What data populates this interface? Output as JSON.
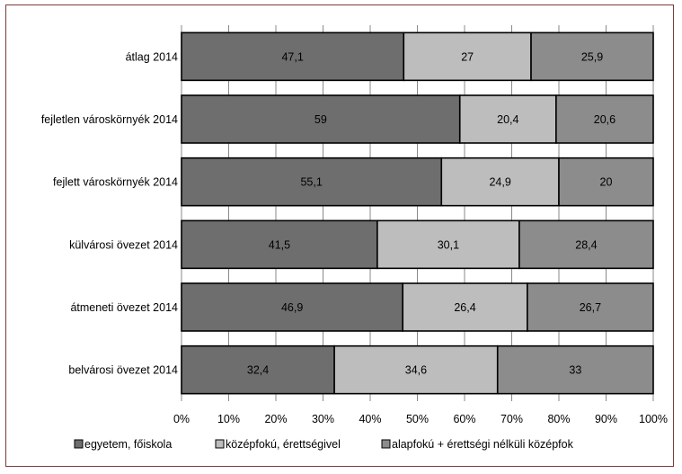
{
  "chart_data": {
    "type": "bar",
    "orientation": "horizontal",
    "stacked": true,
    "percent": true,
    "title": "",
    "xlabel": "",
    "ylabel": "",
    "xlim": [
      0,
      100
    ],
    "xticks": [
      "0%",
      "10%",
      "20%",
      "30%",
      "40%",
      "50%",
      "60%",
      "70%",
      "80%",
      "90%",
      "100%"
    ],
    "grid": true,
    "legend_position": "bottom",
    "categories": [
      "átlag 2014",
      "fejletlen városkörnyék 2014",
      "fejlett városkörnyék 2014",
      "külvárosi övezet 2014",
      "átmeneti övezet 2014",
      "belvárosi övezet 2014"
    ],
    "series": [
      {
        "name": "egyetem, főiskola",
        "color": "#6e6e6e",
        "values": [
          47.1,
          59,
          55.1,
          41.5,
          46.9,
          32.4
        ],
        "labels": [
          "47,1",
          "59",
          "55,1",
          "41,5",
          "46,9",
          "32,4"
        ]
      },
      {
        "name": "középfokú, érettségivel",
        "color": "#bdbdbd",
        "values": [
          27,
          20.4,
          24.9,
          30.1,
          26.4,
          34.6
        ],
        "labels": [
          "27",
          "20,4",
          "24,9",
          "30,1",
          "26,4",
          "34,6"
        ]
      },
      {
        "name": "alapfokú + érettségi nélküli középfok",
        "color": "#8c8c8c",
        "values": [
          25.9,
          20.6,
          20,
          28.4,
          26.7,
          33
        ],
        "labels": [
          "25,9",
          "20,6",
          "20",
          "28,4",
          "26,7",
          "33"
        ]
      }
    ]
  }
}
